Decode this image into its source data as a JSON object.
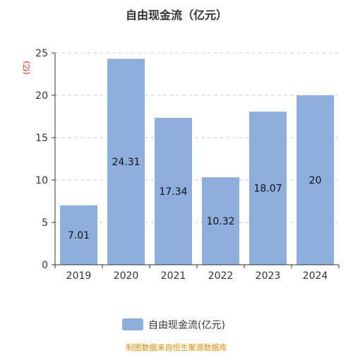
{
  "colors": {
    "bar": "#8eaedb",
    "ylabel": "#e02020",
    "source": "#e08a00",
    "axis": "#333333",
    "grid": "#cccccc",
    "title": "#333333"
  },
  "chart_data": {
    "type": "bar",
    "title": "自由现金流（亿元）",
    "ylabel": "(亿)",
    "xlabel": "",
    "categories": [
      "2019",
      "2020",
      "2021",
      "2022",
      "2023",
      "2024"
    ],
    "series": [
      {
        "name": "自由现金流(亿元)",
        "values": [
          7.01,
          24.31,
          17.34,
          10.32,
          18.07,
          20
        ]
      }
    ],
    "data_labels": [
      "7.01",
      "24.31",
      "17.34",
      "10.32",
      "18.07",
      "20"
    ],
    "ylim": [
      0,
      25
    ],
    "yticks": [
      0,
      5,
      10,
      15,
      20,
      25
    ],
    "grid": true,
    "legend_position": "bottom"
  },
  "source": "制图数据来自恒生聚源数据库"
}
